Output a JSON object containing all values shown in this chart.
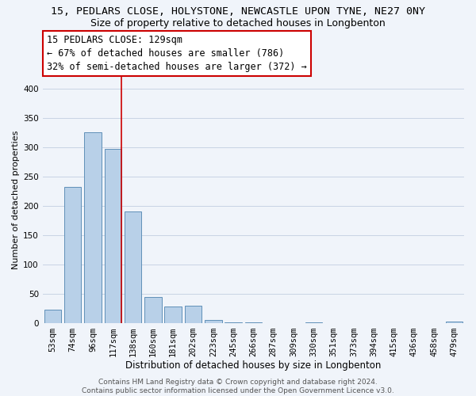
{
  "title": "15, PEDLARS CLOSE, HOLYSTONE, NEWCASTLE UPON TYNE, NE27 0NY",
  "subtitle": "Size of property relative to detached houses in Longbenton",
  "bar_labels": [
    "53sqm",
    "74sqm",
    "96sqm",
    "117sqm",
    "138sqm",
    "160sqm",
    "181sqm",
    "202sqm",
    "223sqm",
    "245sqm",
    "266sqm",
    "287sqm",
    "309sqm",
    "330sqm",
    "351sqm",
    "373sqm",
    "394sqm",
    "415sqm",
    "436sqm",
    "458sqm",
    "479sqm"
  ],
  "bar_values": [
    23,
    233,
    325,
    297,
    190,
    45,
    29,
    30,
    5,
    1,
    1,
    0,
    0,
    1,
    0,
    0,
    0,
    0,
    0,
    0,
    2
  ],
  "bar_color": "#b8d0e8",
  "bar_edge_color": "#6090b8",
  "xlabel": "Distribution of detached houses by size in Longbenton",
  "ylabel": "Number of detached properties",
  "ylim": [
    0,
    420
  ],
  "yticks": [
    0,
    50,
    100,
    150,
    200,
    250,
    300,
    350,
    400
  ],
  "annotation_line1": "15 PEDLARS CLOSE: 129sqm",
  "annotation_line2": "← 67% of detached houses are smaller (786)",
  "annotation_line3": "32% of semi-detached houses are larger (372) →",
  "property_marker_index": 3,
  "red_line_color": "#cc0000",
  "grid_color": "#c8d4e4",
  "background_color": "#f0f4fa",
  "footer_text": "Contains HM Land Registry data © Crown copyright and database right 2024.\nContains public sector information licensed under the Open Government Licence v3.0.",
  "title_fontsize": 9.5,
  "subtitle_fontsize": 9,
  "xlabel_fontsize": 8.5,
  "ylabel_fontsize": 8,
  "tick_fontsize": 7.5,
  "annotation_fontsize": 8.5,
  "footer_fontsize": 6.5
}
